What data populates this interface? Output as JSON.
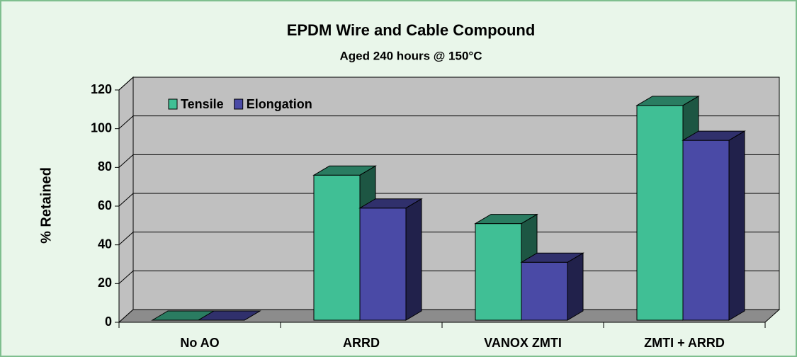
{
  "chart_data": {
    "type": "bar3d",
    "title": "EPDM Wire and Cable Compound",
    "subtitle": "Aged 240 hours @ 150°C",
    "y_label": "% Retained",
    "categories": [
      "No AO",
      "ARRD",
      "VANOX ZMTI",
      "ZMTI + ARRD"
    ],
    "series": [
      {
        "name": "Tensile",
        "color": "#40bf95",
        "values": [
          0,
          76,
          51,
          112
        ]
      },
      {
        "name": "Elongation",
        "color": "#4a4aa6",
        "values": [
          0,
          59,
          31,
          94
        ]
      }
    ],
    "ylim": [
      0,
      120
    ],
    "yticks": [
      0,
      20,
      40,
      60,
      80,
      100,
      120
    ],
    "grid": true,
    "legend": "top-left"
  }
}
